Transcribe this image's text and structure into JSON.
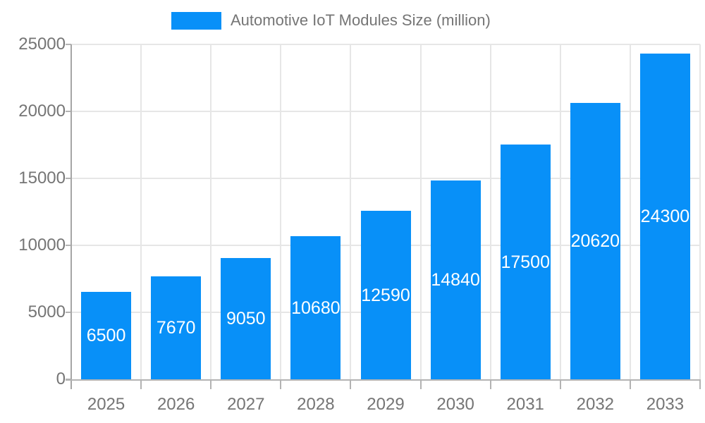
{
  "legend": {
    "label": "Automotive IoT Modules Size (million)"
  },
  "chart_data": {
    "type": "bar",
    "title": "Automotive IoT Modules Size (million)",
    "categories": [
      "2025",
      "2026",
      "2027",
      "2028",
      "2029",
      "2030",
      "2031",
      "2032",
      "2033"
    ],
    "values": [
      6500,
      7670,
      9050,
      10680,
      12590,
      14840,
      17500,
      20620,
      24300
    ],
    "series": [
      {
        "name": "Automotive IoT Modules Size (million)",
        "values": [
          6500,
          7670,
          9050,
          10680,
          12590,
          14840,
          17500,
          20620,
          24300
        ]
      }
    ],
    "xlabel": "",
    "ylabel": "",
    "ylim": [
      0,
      25000
    ],
    "yticks": [
      0,
      5000,
      10000,
      15000,
      20000,
      25000
    ],
    "grid": true,
    "legend_position": "top",
    "value_labels": "inside-center",
    "colors": {
      "bar": "#0890f8",
      "bar_value_text": "#ffffff",
      "axis_text": "#757575",
      "grid": "#e6e6e6",
      "axis_line": "#b3b3b3"
    }
  }
}
